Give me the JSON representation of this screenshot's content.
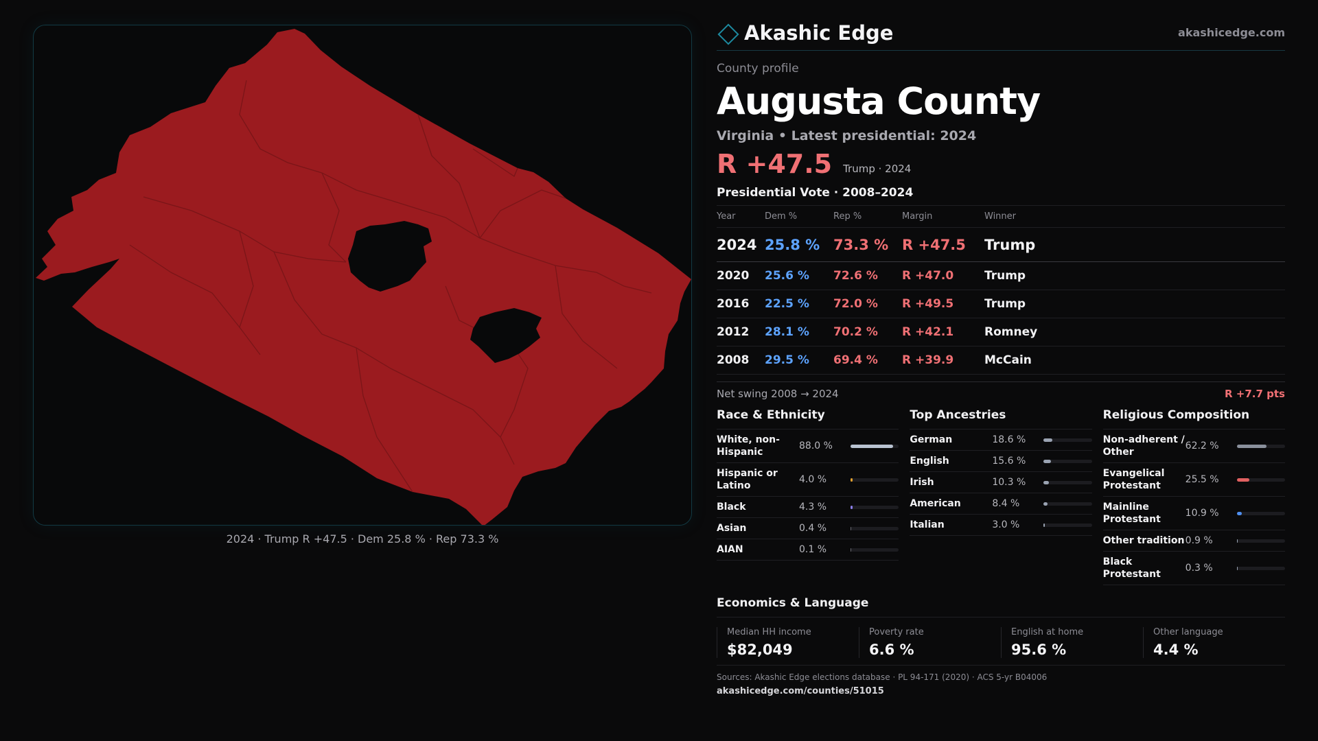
{
  "brand": {
    "name": "Akashic Edge",
    "url": "akashicedge.com",
    "icon": "diamond-icon",
    "accent": "#1d8aa0"
  },
  "profile": {
    "eyebrow": "County profile",
    "title": "Augusta County",
    "subtitle": "Virginia • Latest presidential: 2024",
    "headline_margin": "R +47.5",
    "headline_note": "Trump · 2024"
  },
  "votes": {
    "title": "Presidential Vote · 2008–2024",
    "headers": {
      "year": "Year",
      "dem": "Dem %",
      "rep": "Rep %",
      "margin": "Margin",
      "winner": "Winner"
    },
    "rows": [
      {
        "year": "2024",
        "dem": "25.8 %",
        "rep": "73.3 %",
        "margin": "R +47.5",
        "winner": "Trump"
      },
      {
        "year": "2020",
        "dem": "25.6 %",
        "rep": "72.6 %",
        "margin": "R +47.0",
        "winner": "Trump"
      },
      {
        "year": "2016",
        "dem": "22.5 %",
        "rep": "72.0 %",
        "margin": "R +49.5",
        "winner": "Trump"
      },
      {
        "year": "2012",
        "dem": "28.1 %",
        "rep": "70.2 %",
        "margin": "R +42.1",
        "winner": "Romney"
      },
      {
        "year": "2008",
        "dem": "29.5 %",
        "rep": "69.4 %",
        "margin": "R +39.9",
        "winner": "McCain"
      }
    ],
    "swing_label": "Net swing 2008 → 2024",
    "swing_value": "R +7.7 pts"
  },
  "race": {
    "title": "Race & Ethnicity",
    "rows": [
      {
        "label": "White, non-Hispanic",
        "value": "88.0 %",
        "pct": 88.0,
        "color": "#b9c3d1"
      },
      {
        "label": "Hispanic or Latino",
        "value": "4.0 %",
        "pct": 4.0,
        "color": "#e0a030"
      },
      {
        "label": "Black",
        "value": "4.3 %",
        "pct": 4.3,
        "color": "#8a7de8"
      },
      {
        "label": "Asian",
        "value": "0.4 %",
        "pct": 0.4,
        "color": "#6a6a72"
      },
      {
        "label": "AIAN",
        "value": "0.1 %",
        "pct": 0.1,
        "color": "#6a6a72"
      }
    ]
  },
  "ancestry": {
    "title": "Top Ancestries",
    "rows": [
      {
        "label": "German",
        "value": "18.6 %",
        "pct": 18.6,
        "color": "#9aa3b2"
      },
      {
        "label": "English",
        "value": "15.6 %",
        "pct": 15.6,
        "color": "#9aa3b2"
      },
      {
        "label": "Irish",
        "value": "10.3 %",
        "pct": 10.3,
        "color": "#9aa3b2"
      },
      {
        "label": "American",
        "value": "8.4 %",
        "pct": 8.4,
        "color": "#9aa3b2"
      },
      {
        "label": "Italian",
        "value": "3.0 %",
        "pct": 3.0,
        "color": "#9aa3b2"
      }
    ]
  },
  "religion": {
    "title": "Religious Composition",
    "rows": [
      {
        "label": "Non-adherent / Other",
        "value": "62.2 %",
        "pct": 62.2,
        "color": "#8a909c"
      },
      {
        "label": "Evangelical Protestant",
        "value": "25.5 %",
        "pct": 25.5,
        "color": "#e06060"
      },
      {
        "label": "Mainline Protestant",
        "value": "10.9 %",
        "pct": 10.9,
        "color": "#4f8ff0"
      },
      {
        "label": "Other tradition",
        "value": "0.9 %",
        "pct": 0.9,
        "color": "#9aa3b2"
      },
      {
        "label": "Black Protestant",
        "value": "0.3 %",
        "pct": 0.3,
        "color": "#9aa3b2"
      }
    ]
  },
  "economics": {
    "title": "Economics & Language",
    "cards": [
      {
        "label": "Median HH income",
        "value": "$82,049"
      },
      {
        "label": "Poverty rate",
        "value": "6.6 %"
      },
      {
        "label": "English at home",
        "value": "95.6 %"
      },
      {
        "label": "Other language",
        "value": "4.4 %"
      }
    ]
  },
  "sources": {
    "text": "Sources: Akashic Edge elections database · PL 94-171 (2020) · ACS 5-yr B04006",
    "url": "akashicedge.com/counties/51015"
  },
  "map": {
    "caption": "2024 · Trump R +47.5 · Dem 25.8 % · Rep 73.3 %",
    "fill_color": "#9b1b1f",
    "border_color": "#7a1518",
    "hole_color": "#08090a"
  }
}
